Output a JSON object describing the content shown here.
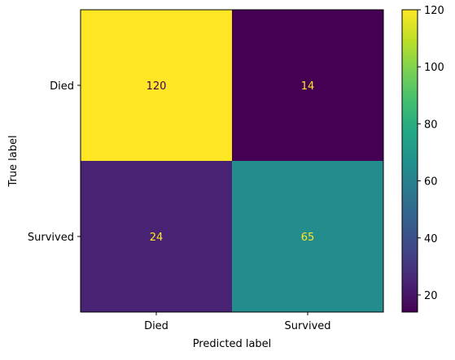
{
  "chart_data": {
    "type": "heatmap",
    "title": "",
    "xlabel": "Predicted label",
    "ylabel": "True label",
    "x_categories": [
      "Died",
      "Survived"
    ],
    "y_categories": [
      "Died",
      "Survived"
    ],
    "matrix": [
      [
        120,
        14
      ],
      [
        24,
        65
      ]
    ],
    "value_range": [
      14,
      120
    ],
    "colormap": "viridis",
    "colorbar": {
      "ticks": [
        20,
        40,
        60,
        80,
        100,
        120
      ]
    },
    "text_colors": {
      "on_dark": "#fde725",
      "on_light": "#440154"
    }
  }
}
